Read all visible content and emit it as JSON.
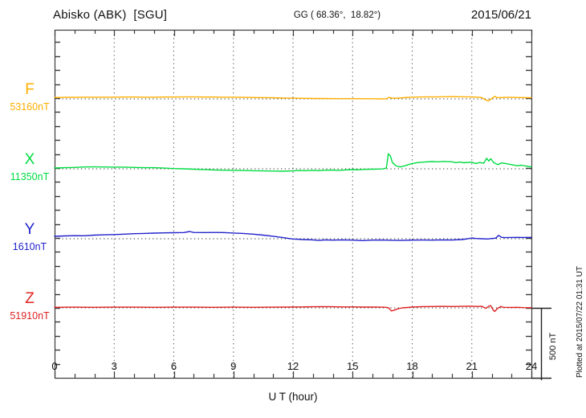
{
  "header": {
    "station": "Abisko (ABK)  [SGU]",
    "coords": "GG ( 68.36°,  18.82°)",
    "date": "2015/06/21"
  },
  "x_axis": {
    "title": "U T (hour)"
  },
  "scale_bar": {
    "label": "500 nT"
  },
  "footer_note": "Plotted at 2015/07/22 01:31 UT",
  "chart_data": {
    "type": "line",
    "title": "Abisko (ABK) [SGU] magnetogram for 2015/06/21",
    "xlabel": "U T (hour)",
    "x_range": [
      0,
      24
    ],
    "x_major_ticks": [
      0,
      3,
      6,
      9,
      12,
      15,
      18,
      21,
      24
    ],
    "x_tick_labels": [
      "0",
      "3",
      "6",
      "9",
      "12",
      "15",
      "18",
      "21",
      "24"
    ],
    "x_minor_tick_step_hours": 1,
    "grid": "dotted vertical lines every 3 hours; dotted horizontal baseline per channel",
    "y_minor_tick_nT": 100,
    "channel_offset_nT": 500,
    "scale_bar_nT": 500,
    "frame_color": "#3a3a3a",
    "series": [
      {
        "id": "F",
        "label": "F",
        "base_label": "53160nT",
        "base_nT": 53160,
        "color": "#FFAE00",
        "points": [
          [
            0,
            10
          ],
          [
            0.5,
            11
          ],
          [
            1,
            11
          ],
          [
            1.5,
            12
          ],
          [
            2,
            12
          ],
          [
            2.5,
            12
          ],
          [
            3,
            12
          ],
          [
            3.5,
            13
          ],
          [
            4,
            13
          ],
          [
            4.5,
            12
          ],
          [
            5,
            12
          ],
          [
            5.5,
            13
          ],
          [
            6,
            13
          ],
          [
            6.5,
            14
          ],
          [
            7,
            14
          ],
          [
            7.5,
            13
          ],
          [
            8,
            13
          ],
          [
            8.5,
            12
          ],
          [
            9,
            12
          ],
          [
            9.5,
            11
          ],
          [
            10,
            10
          ],
          [
            10.5,
            9
          ],
          [
            11,
            8
          ],
          [
            11.5,
            6
          ],
          [
            12,
            5
          ],
          [
            12.5,
            4
          ],
          [
            13,
            3
          ],
          [
            13.5,
            3
          ],
          [
            14,
            2
          ],
          [
            14.5,
            2
          ],
          [
            15,
            2
          ],
          [
            15.5,
            1
          ],
          [
            16,
            1
          ],
          [
            16.5,
            0
          ],
          [
            16.7,
            1
          ],
          [
            16.85,
            11
          ],
          [
            17,
            4
          ],
          [
            17.3,
            6
          ],
          [
            17.6,
            9
          ],
          [
            18,
            12
          ],
          [
            18.5,
            14
          ],
          [
            19,
            14
          ],
          [
            19.5,
            15
          ],
          [
            20,
            16
          ],
          [
            20.5,
            15
          ],
          [
            21,
            14
          ],
          [
            21.3,
            12
          ],
          [
            21.5,
            10
          ],
          [
            21.7,
            -8
          ],
          [
            21.85,
            -14
          ],
          [
            22,
            2
          ],
          [
            22.15,
            18
          ],
          [
            22.3,
            8
          ],
          [
            22.5,
            10
          ],
          [
            22.8,
            11
          ],
          [
            23,
            11
          ],
          [
            23.4,
            10
          ],
          [
            23.7,
            9
          ],
          [
            24,
            8
          ]
        ]
      },
      {
        "id": "X",
        "label": "X",
        "base_label": "11350nT",
        "base_nT": 11350,
        "color": "#00DC42",
        "points": [
          [
            0,
            6
          ],
          [
            0.5,
            8
          ],
          [
            1,
            10
          ],
          [
            1.5,
            13
          ],
          [
            2,
            14
          ],
          [
            2.5,
            13
          ],
          [
            3,
            12
          ],
          [
            3.5,
            12
          ],
          [
            4,
            10
          ],
          [
            4.5,
            8
          ],
          [
            5,
            8
          ],
          [
            5.5,
            5
          ],
          [
            6,
            2
          ],
          [
            6.5,
            0
          ],
          [
            7,
            -3
          ],
          [
            7.5,
            -5
          ],
          [
            8,
            -8
          ],
          [
            8.5,
            -10
          ],
          [
            9,
            -11
          ],
          [
            9.5,
            -12
          ],
          [
            10,
            -14
          ],
          [
            10.5,
            -15
          ],
          [
            11,
            -16
          ],
          [
            11.5,
            -17
          ],
          [
            12,
            -15
          ],
          [
            12.3,
            -12
          ],
          [
            12.6,
            -14
          ],
          [
            13,
            -11
          ],
          [
            13.3,
            -13
          ],
          [
            13.6,
            -10
          ],
          [
            14,
            -9
          ],
          [
            14.3,
            -11
          ],
          [
            14.6,
            -8
          ],
          [
            15,
            -6
          ],
          [
            15.3,
            -7
          ],
          [
            15.6,
            -4
          ],
          [
            16,
            -3
          ],
          [
            16.3,
            -2
          ],
          [
            16.5,
            -1
          ],
          [
            16.7,
            5
          ],
          [
            16.8,
            108
          ],
          [
            16.9,
            92
          ],
          [
            17,
            45
          ],
          [
            17.2,
            20
          ],
          [
            17.4,
            13
          ],
          [
            17.6,
            20
          ],
          [
            17.8,
            30
          ],
          [
            18,
            38
          ],
          [
            18.3,
            45
          ],
          [
            18.6,
            48
          ],
          [
            19,
            52
          ],
          [
            19.3,
            50
          ],
          [
            19.6,
            53
          ],
          [
            20,
            50
          ],
          [
            20.2,
            44
          ],
          [
            20.4,
            48
          ],
          [
            20.6,
            43
          ],
          [
            20.8,
            46
          ],
          [
            21,
            47
          ],
          [
            21.2,
            38
          ],
          [
            21.4,
            45
          ],
          [
            21.6,
            40
          ],
          [
            21.75,
            75
          ],
          [
            21.85,
            55
          ],
          [
            21.95,
            72
          ],
          [
            22.1,
            45
          ],
          [
            22.3,
            30
          ],
          [
            22.5,
            42
          ],
          [
            22.7,
            38
          ],
          [
            23,
            30
          ],
          [
            23.3,
            22
          ],
          [
            23.5,
            26
          ],
          [
            23.7,
            20
          ],
          [
            24,
            13
          ]
        ]
      },
      {
        "id": "Y",
        "label": "Y",
        "base_label": "1610nT",
        "base_nT": 1610,
        "color": "#2222CC",
        "points": [
          [
            0,
            17
          ],
          [
            0.5,
            20
          ],
          [
            1,
            22
          ],
          [
            1.5,
            21
          ],
          [
            2,
            26
          ],
          [
            2.5,
            28
          ],
          [
            3,
            30
          ],
          [
            3.5,
            33
          ],
          [
            4,
            36
          ],
          [
            4.5,
            38
          ],
          [
            5,
            40
          ],
          [
            5.5,
            42
          ],
          [
            6,
            43
          ],
          [
            6.5,
            44
          ],
          [
            6.8,
            52
          ],
          [
            7,
            45
          ],
          [
            7.5,
            44
          ],
          [
            8,
            45
          ],
          [
            8.5,
            44
          ],
          [
            9,
            41
          ],
          [
            9.5,
            38
          ],
          [
            10,
            33
          ],
          [
            10.5,
            26
          ],
          [
            11,
            18
          ],
          [
            11.5,
            8
          ],
          [
            11.8,
            2
          ],
          [
            12,
            -2
          ],
          [
            12.5,
            -6
          ],
          [
            13,
            -8
          ],
          [
            13.3,
            -12
          ],
          [
            13.6,
            -8
          ],
          [
            14,
            -10
          ],
          [
            14.5,
            -8
          ],
          [
            15,
            -10
          ],
          [
            15.5,
            -13
          ],
          [
            16,
            -10
          ],
          [
            16.5,
            -9
          ],
          [
            17,
            -11
          ],
          [
            17.5,
            -12
          ],
          [
            18,
            -10
          ],
          [
            18.5,
            -9
          ],
          [
            19,
            -10
          ],
          [
            19.5,
            -8
          ],
          [
            20,
            -9
          ],
          [
            20.5,
            -6
          ],
          [
            20.8,
            0
          ],
          [
            21,
            6
          ],
          [
            21.2,
            2
          ],
          [
            21.5,
            0
          ],
          [
            21.8,
            -2
          ],
          [
            22,
            2
          ],
          [
            22.2,
            4
          ],
          [
            22.35,
            24
          ],
          [
            22.5,
            10
          ],
          [
            22.7,
            8
          ],
          [
            23,
            9
          ],
          [
            23.3,
            10
          ],
          [
            23.6,
            9
          ],
          [
            24,
            10
          ]
        ]
      },
      {
        "id": "Z",
        "label": "Z",
        "base_label": "51910nT",
        "base_nT": 51910,
        "color": "#E02222",
        "points": [
          [
            0,
            4
          ],
          [
            1,
            5
          ],
          [
            2,
            4
          ],
          [
            3,
            5
          ],
          [
            4,
            5
          ],
          [
            5,
            4
          ],
          [
            6,
            5
          ],
          [
            7,
            5
          ],
          [
            8,
            4
          ],
          [
            9,
            5
          ],
          [
            10,
            4
          ],
          [
            11,
            5
          ],
          [
            12,
            6
          ],
          [
            12.5,
            7
          ],
          [
            13,
            8
          ],
          [
            13.5,
            9
          ],
          [
            14,
            8
          ],
          [
            14.5,
            7
          ],
          [
            15,
            7
          ],
          [
            15.5,
            6
          ],
          [
            16,
            6
          ],
          [
            16.5,
            5
          ],
          [
            16.8,
            2
          ],
          [
            16.95,
            -22
          ],
          [
            17.1,
            -16
          ],
          [
            17.3,
            -6
          ],
          [
            17.5,
            0
          ],
          [
            18,
            6
          ],
          [
            18.5,
            9
          ],
          [
            19,
            10
          ],
          [
            19.5,
            11
          ],
          [
            20,
            10
          ],
          [
            20.5,
            11
          ],
          [
            21,
            12
          ],
          [
            21.3,
            10
          ],
          [
            21.5,
            12
          ],
          [
            21.7,
            -4
          ],
          [
            21.85,
            12
          ],
          [
            21.95,
            16
          ],
          [
            22.05,
            -10
          ],
          [
            22.15,
            -26
          ],
          [
            22.3,
            -4
          ],
          [
            22.45,
            10
          ],
          [
            22.6,
            4
          ],
          [
            23,
            3
          ],
          [
            23.3,
            4
          ],
          [
            23.6,
            2
          ],
          [
            24,
            1
          ]
        ]
      }
    ]
  }
}
